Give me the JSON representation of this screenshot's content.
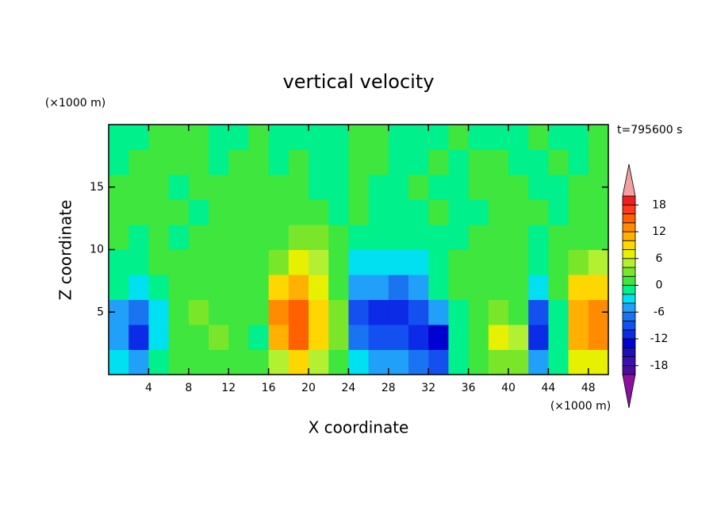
{
  "chart_data": {
    "type": "contour",
    "title": "vertical velocity",
    "x_label": "X coordinate",
    "y_label": "Z coordinate",
    "x_unit_label": "(×1000 m)",
    "y_unit_label": "(×1000 m)",
    "time_label": "t=795600 s",
    "xlim": [
      0,
      50
    ],
    "ylim": [
      0,
      20
    ],
    "xticks": [
      4,
      8,
      12,
      16,
      20,
      24,
      28,
      32,
      36,
      40,
      44,
      48
    ],
    "yticks": [
      5,
      10,
      15
    ],
    "x": [
      1,
      3,
      5,
      7,
      9,
      11,
      13,
      15,
      17,
      19,
      21,
      23,
      25,
      27,
      29,
      31,
      33,
      35,
      37,
      39,
      41,
      43,
      45,
      47,
      49
    ],
    "y": [
      1,
      3,
      5,
      7,
      9,
      11,
      13,
      15,
      17,
      19
    ],
    "values": [
      [
        -4,
        -6,
        -2,
        0,
        1,
        1,
        1,
        1,
        5,
        8,
        4,
        1,
        -3,
        -5,
        -6,
        -8,
        -10,
        -1,
        1,
        3,
        2,
        -6,
        -1,
        6,
        7
      ],
      [
        -6,
        -11,
        -3,
        0,
        1,
        2,
        1,
        -2,
        11,
        14,
        8,
        2,
        -8,
        -10,
        -9,
        -11,
        -14,
        -1,
        1,
        6,
        5,
        -12,
        -2,
        10,
        12
      ],
      [
        -5,
        -8,
        -3,
        0,
        2,
        1,
        1,
        1,
        12,
        15,
        9,
        2,
        -10,
        -11,
        -12,
        -10,
        -6,
        -1,
        1,
        3,
        1,
        -9,
        -1,
        11,
        13
      ],
      [
        -2,
        -3,
        -1,
        0,
        1,
        0,
        1,
        1,
        8,
        10,
        7,
        1,
        -5,
        -6,
        -8,
        -5,
        -2,
        0,
        0,
        1,
        0,
        -3,
        0,
        8,
        9
      ],
      [
        -1,
        -1,
        0,
        0,
        0,
        0,
        1,
        1,
        3,
        6,
        4,
        1,
        -3,
        -4,
        -4,
        -3,
        -1,
        0,
        1,
        0,
        0,
        -1,
        1,
        3,
        4
      ],
      [
        0,
        -1,
        1,
        -1,
        0,
        1,
        0,
        1,
        1,
        3,
        2,
        0,
        -1,
        -2,
        -2,
        -1,
        -1,
        -1,
        0,
        1,
        0,
        -1,
        0,
        1,
        1
      ],
      [
        1,
        0,
        1,
        0,
        -1,
        1,
        1,
        0,
        1,
        1,
        0,
        -1,
        0,
        -1,
        -1,
        -1,
        0,
        -2,
        -1,
        0,
        1,
        0,
        -1,
        0,
        1
      ],
      [
        0,
        1,
        1,
        -1,
        1,
        0,
        1,
        1,
        1,
        0,
        -1,
        -1,
        1,
        -1,
        -1,
        0,
        -1,
        -1,
        0,
        1,
        1,
        -1,
        -1,
        0,
        1
      ],
      [
        -1,
        1,
        1,
        1,
        0,
        -1,
        1,
        1,
        -1,
        0,
        -1,
        -1,
        1,
        0,
        -1,
        -1,
        0,
        -1,
        1,
        1,
        -1,
        -1,
        0,
        -1,
        1
      ],
      [
        -1,
        -1,
        1,
        1,
        0,
        -1,
        -1,
        1,
        -1,
        -1,
        -1,
        -1,
        1,
        0,
        -1,
        -1,
        -1,
        1,
        -1,
        -1,
        -1,
        0,
        -1,
        -1,
        1
      ]
    ],
    "colorbar": {
      "lim": [
        -20,
        20
      ],
      "ticks": [
        -18,
        -12,
        -6,
        0,
        6,
        12,
        18
      ],
      "levels": [
        -20,
        -18,
        -16,
        -14,
        -12,
        -10,
        -8,
        -6,
        -4,
        -2,
        0,
        2,
        4,
        6,
        8,
        10,
        12,
        14,
        16,
        18,
        20
      ],
      "colors": [
        "#4b0c9c",
        "#3a10b0",
        "#1a0fb8",
        "#0000d0",
        "#0b2be6",
        "#1450f0",
        "#1a74f2",
        "#20a0f8",
        "#00e0f0",
        "#00f08c",
        "#3ee63e",
        "#7ae62a",
        "#b4f032",
        "#e6f000",
        "#ffd700",
        "#ffb000",
        "#ff8c00",
        "#ff6000",
        "#ff3a1a",
        "#f01e1e"
      ],
      "over_color": "#f4a0a0",
      "under_color": "#8c10a0"
    }
  }
}
